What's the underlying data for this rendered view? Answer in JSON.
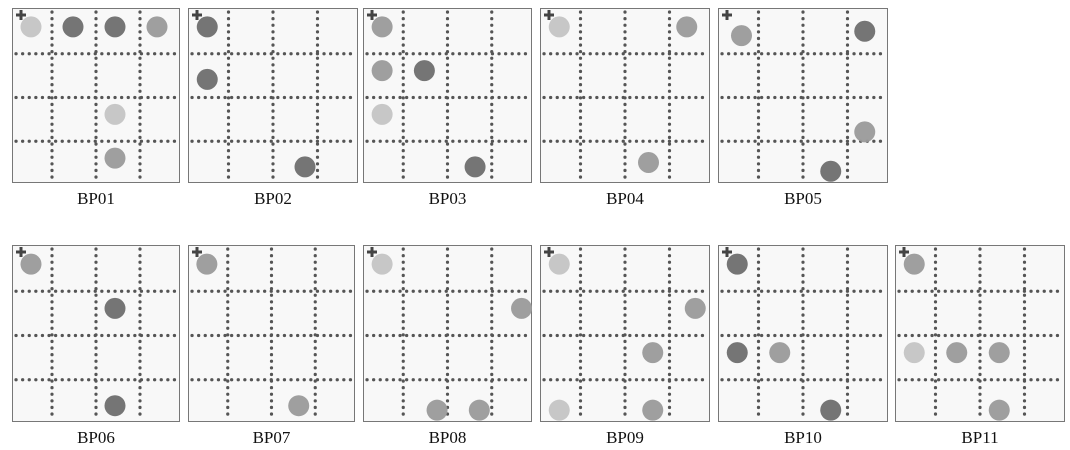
{
  "panels": [
    {
      "label": "BP01"
    },
    {
      "label": "BP02"
    },
    {
      "label": "BP03"
    },
    {
      "label": "BP04"
    },
    {
      "label": "BP05"
    },
    {
      "label": "BP06"
    },
    {
      "label": "BP07"
    },
    {
      "label": "BP08"
    },
    {
      "label": "BP09"
    },
    {
      "label": "BP10"
    },
    {
      "label": "BP11"
    }
  ]
}
